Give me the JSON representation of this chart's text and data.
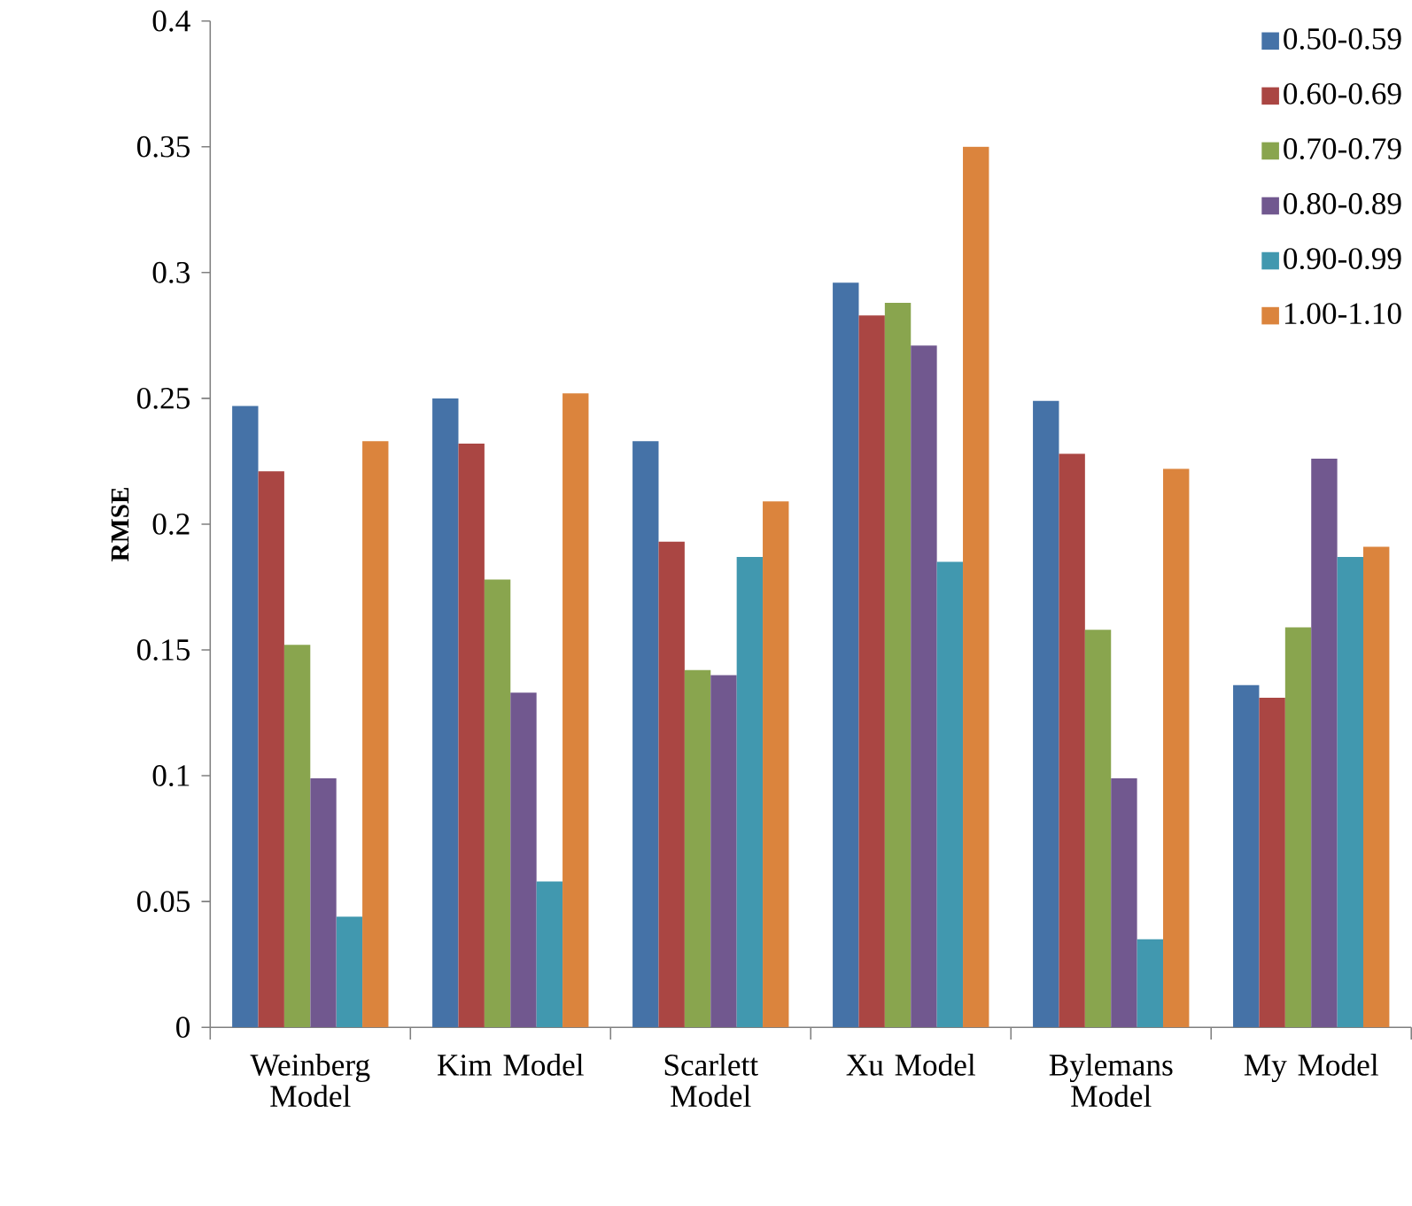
{
  "chart_data": {
    "type": "bar",
    "ylabel": "RMSE",
    "categories": [
      "Weinberg Model",
      "Kim Model",
      "Scarlett Model",
      "Xu Model",
      "Bylemans Model",
      "My Model"
    ],
    "series": [
      {
        "name": "0.50-0.59",
        "color": "#4572a7",
        "values": [
          0.247,
          0.25,
          0.233,
          0.296,
          0.249,
          0.136
        ]
      },
      {
        "name": "0.60-0.69",
        "color": "#aa4643",
        "values": [
          0.221,
          0.232,
          0.193,
          0.283,
          0.228,
          0.131
        ]
      },
      {
        "name": "0.70-0.79",
        "color": "#89a54e",
        "values": [
          0.152,
          0.178,
          0.142,
          0.288,
          0.158,
          0.159
        ]
      },
      {
        "name": "0.80-0.89",
        "color": "#71588f",
        "values": [
          0.099,
          0.133,
          0.14,
          0.271,
          0.099,
          0.226
        ]
      },
      {
        "name": "0.90-0.99",
        "color": "#4198af",
        "values": [
          0.044,
          0.058,
          0.187,
          0.185,
          0.035,
          0.187
        ]
      },
      {
        "name": "1.00-1.10",
        "color": "#db843d",
        "values": [
          0.233,
          0.252,
          0.209,
          0.35,
          0.222,
          0.191
        ]
      }
    ],
    "ylim": [
      0,
      0.4
    ],
    "yticks": [
      0,
      0.05,
      0.1,
      0.15,
      0.2,
      0.25,
      0.3,
      0.35,
      0.4
    ],
    "legend": "top right",
    "grid": false
  }
}
